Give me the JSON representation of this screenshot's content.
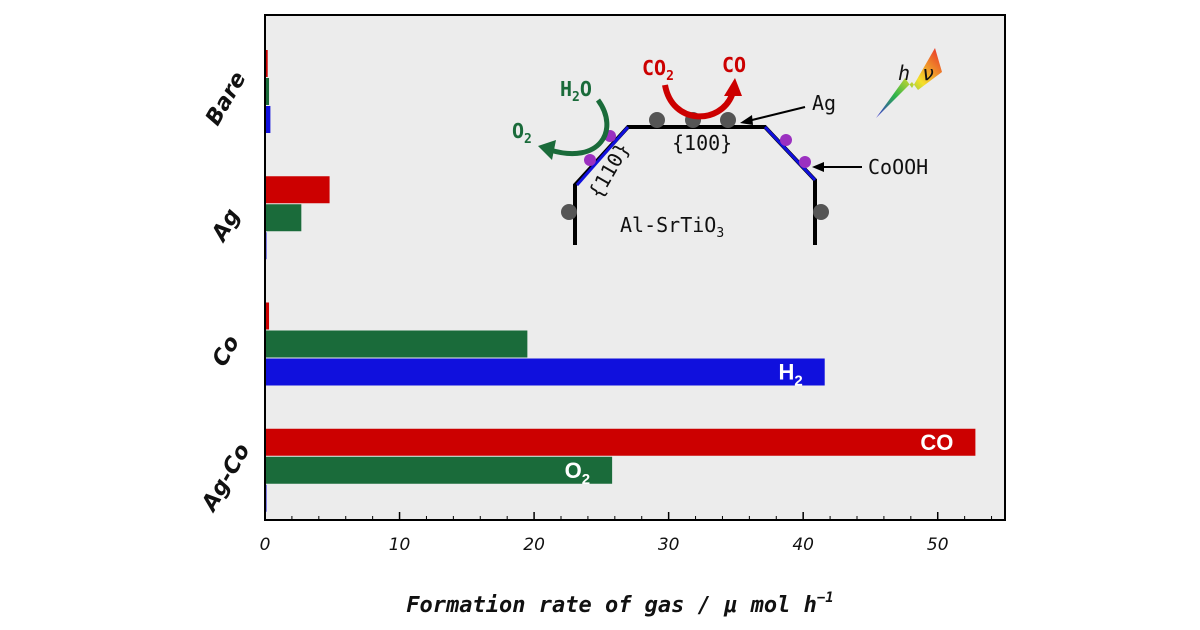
{
  "chart_data": {
    "type": "bar",
    "orientation": "horizontal",
    "categories": [
      "Bare",
      "Ag",
      "Co",
      "Ag-Co"
    ],
    "series": [
      {
        "name": "CO",
        "color": "#cc0000",
        "values": [
          0.2,
          4.8,
          0.3,
          52.8
        ]
      },
      {
        "name": "O2",
        "color": "#1a6b3a",
        "values": [
          0.3,
          2.7,
          19.5,
          25.8
        ]
      },
      {
        "name": "H2",
        "color": "#1010dd",
        "values": [
          0.4,
          0.1,
          41.6,
          0.1
        ]
      }
    ],
    "series_labels": {
      "CO": {
        "main": "CO",
        "sub": ""
      },
      "O2": {
        "main": "O",
        "sub": "2"
      },
      "H2": {
        "main": "H",
        "sub": "2"
      }
    },
    "xlabel": "Formation rate of gas /  μ mol h",
    "xlabel_sup": "−1",
    "xlim": [
      0,
      55
    ],
    "xticks": [
      "0",
      "10",
      "20",
      "30",
      "40",
      "50"
    ],
    "grid": false,
    "background": "#ececec"
  },
  "inset": {
    "h2o": {
      "main": "H",
      "sub": "2",
      "tail": "O"
    },
    "o2": {
      "main": "O",
      "sub": "2"
    },
    "co2": {
      "main": "CO",
      "sub": "2"
    },
    "co": "CO",
    "ag": "Ag",
    "facet_100": "{100}",
    "facet_110": "{110}",
    "cooh": "CoOOH",
    "crystal": {
      "main": "Al-SrTiO",
      "sub": "3"
    },
    "light": "h ν"
  }
}
